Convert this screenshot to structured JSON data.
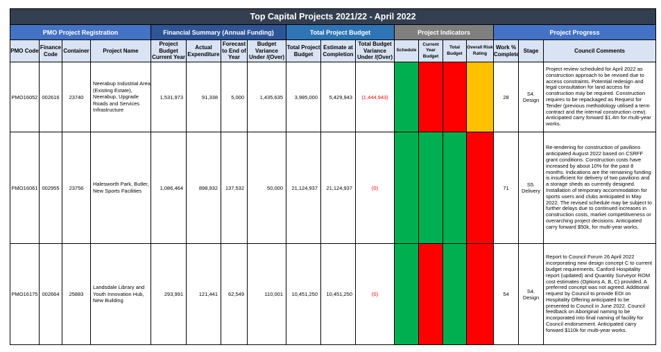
{
  "title": "Top Capital Projects 2021/22 - April 2022",
  "groups": {
    "registration": "PMO Project Registration",
    "financial": "Financial Summary (Annual Funding)",
    "total_budget": "Total Project Budget",
    "indicators": "Project Indicators",
    "progress": "Project Progress"
  },
  "columns": {
    "pmo_code": "PMO Code",
    "finance_code": "Finance Code",
    "container": "Container",
    "project_name": "Project Name",
    "project_budget": "Project Budget Current Year",
    "actual_expenditure": "Actual Expenditure",
    "forecast": "Forecast to End of Year",
    "budget_variance": "Budget Variance Under /(Over)",
    "total_project_budget": "Total Project Budget",
    "estimate_completion": "Estimate at Completion",
    "total_budget_variance": "Total Budget Variance Under /(Over)",
    "schedule": "Schedule",
    "current_year_budget": "Current Year Budget",
    "total_budget": "Total Budget",
    "overall_risk": "Overall Risk Rating",
    "work_complete": "Work % Complete",
    "stage": "Stage",
    "council_comments": "Council Comments"
  },
  "indicator_colors": {
    "green": "#00b050",
    "red": "#ff0000",
    "amber": "#ffc000"
  },
  "rows": [
    {
      "pmo_code": "PMO16052",
      "finance_code": "002616",
      "container": "23740",
      "project_name": "Neerabup Industrial Area (Existing Estate), Neerabup, Upgrade Roads and Services Infrastructure",
      "project_budget": "1,531,973",
      "actual_expenditure": "91,338",
      "forecast": "5,000",
      "budget_variance": "1,435,635",
      "total_project_budget": "3,985,000",
      "estimate_completion": "5,429,943",
      "total_budget_variance": "(1,444,943)",
      "indicators": {
        "schedule": "green",
        "current_year_budget": "red",
        "total_budget": "red",
        "overall_risk": "amber"
      },
      "work_complete": "28",
      "stage": "S4. Design",
      "comment": "Project review scheduled for April 2022 as construction approach to be revised due to access constraints. Potential redesign and legal consultation for land access for construction may be required. Construction requires to be repackaged as Request for Tender (previous methodology utilised a term contract and the internal construction crew). Anticipated carry forward $1.4m for multi-year works."
    },
    {
      "pmo_code": "PMO16061",
      "finance_code": "002955",
      "container": "23756",
      "project_name": "Halesworth Park, Butler, New Sports Facilities",
      "project_budget": "1,086,464",
      "actual_expenditure": "898,932",
      "forecast": "137,532",
      "budget_variance": "50,000",
      "total_project_budget": "21,124,937",
      "estimate_completion": "21,124,937",
      "total_budget_variance": "(0)",
      "indicators": {
        "schedule": "green",
        "current_year_budget": "green",
        "total_budget": "green",
        "overall_risk": "red"
      },
      "work_complete": "71",
      "stage": "S5. Delivery",
      "comment": "Re-tendering for construction of pavilions anticipated August 2022 based on CSRFF grant conditions. Construction costs have increased by about 10% for the past 8 months. Indications are the remaining funding is insufficient for delivery of two pavilions and a storage sheds as currently designed. Installation of temporary accommodation for sports users and clubs anticipated in May 2022. The revised schedule may be subject to further delays due to continued increases in construction costs, market competitiveness or overarching project decisions. Anticipated carry forward $50k, for multi-year works."
    },
    {
      "pmo_code": "PMO16175",
      "finance_code": "002664",
      "container": "25883",
      "project_name": "Landsdale Library and Youth Innovation Hub, New Building",
      "project_budget": "293,991",
      "actual_expenditure": "121,441",
      "forecast": "62,549",
      "budget_variance": "110,001",
      "total_project_budget": "10,451,250",
      "estimate_completion": "10,451,250",
      "total_budget_variance": "(0)",
      "indicators": {
        "schedule": "green",
        "current_year_budget": "red",
        "total_budget": "green",
        "overall_risk": "red"
      },
      "work_complete": "54",
      "stage": "S4. Design",
      "comment": "Report to Council Forum 26 April 2022 incorporating new design concept C to current budget requirements.  Canford Hospitality report (updated) and Quantity Surveyor ROM cost estimates (Options A, B, C) provided.  A preferred concept was not agreed.  Additional request by Council to provide EOI on Hospitality Offering anticipated to be presented to Council in June 2022.  Council feedback on Aboriginal naming to be incorporated into final naming of facility for Council endorsement. Anticipated carry forward $110k for multi-year works."
    }
  ]
}
